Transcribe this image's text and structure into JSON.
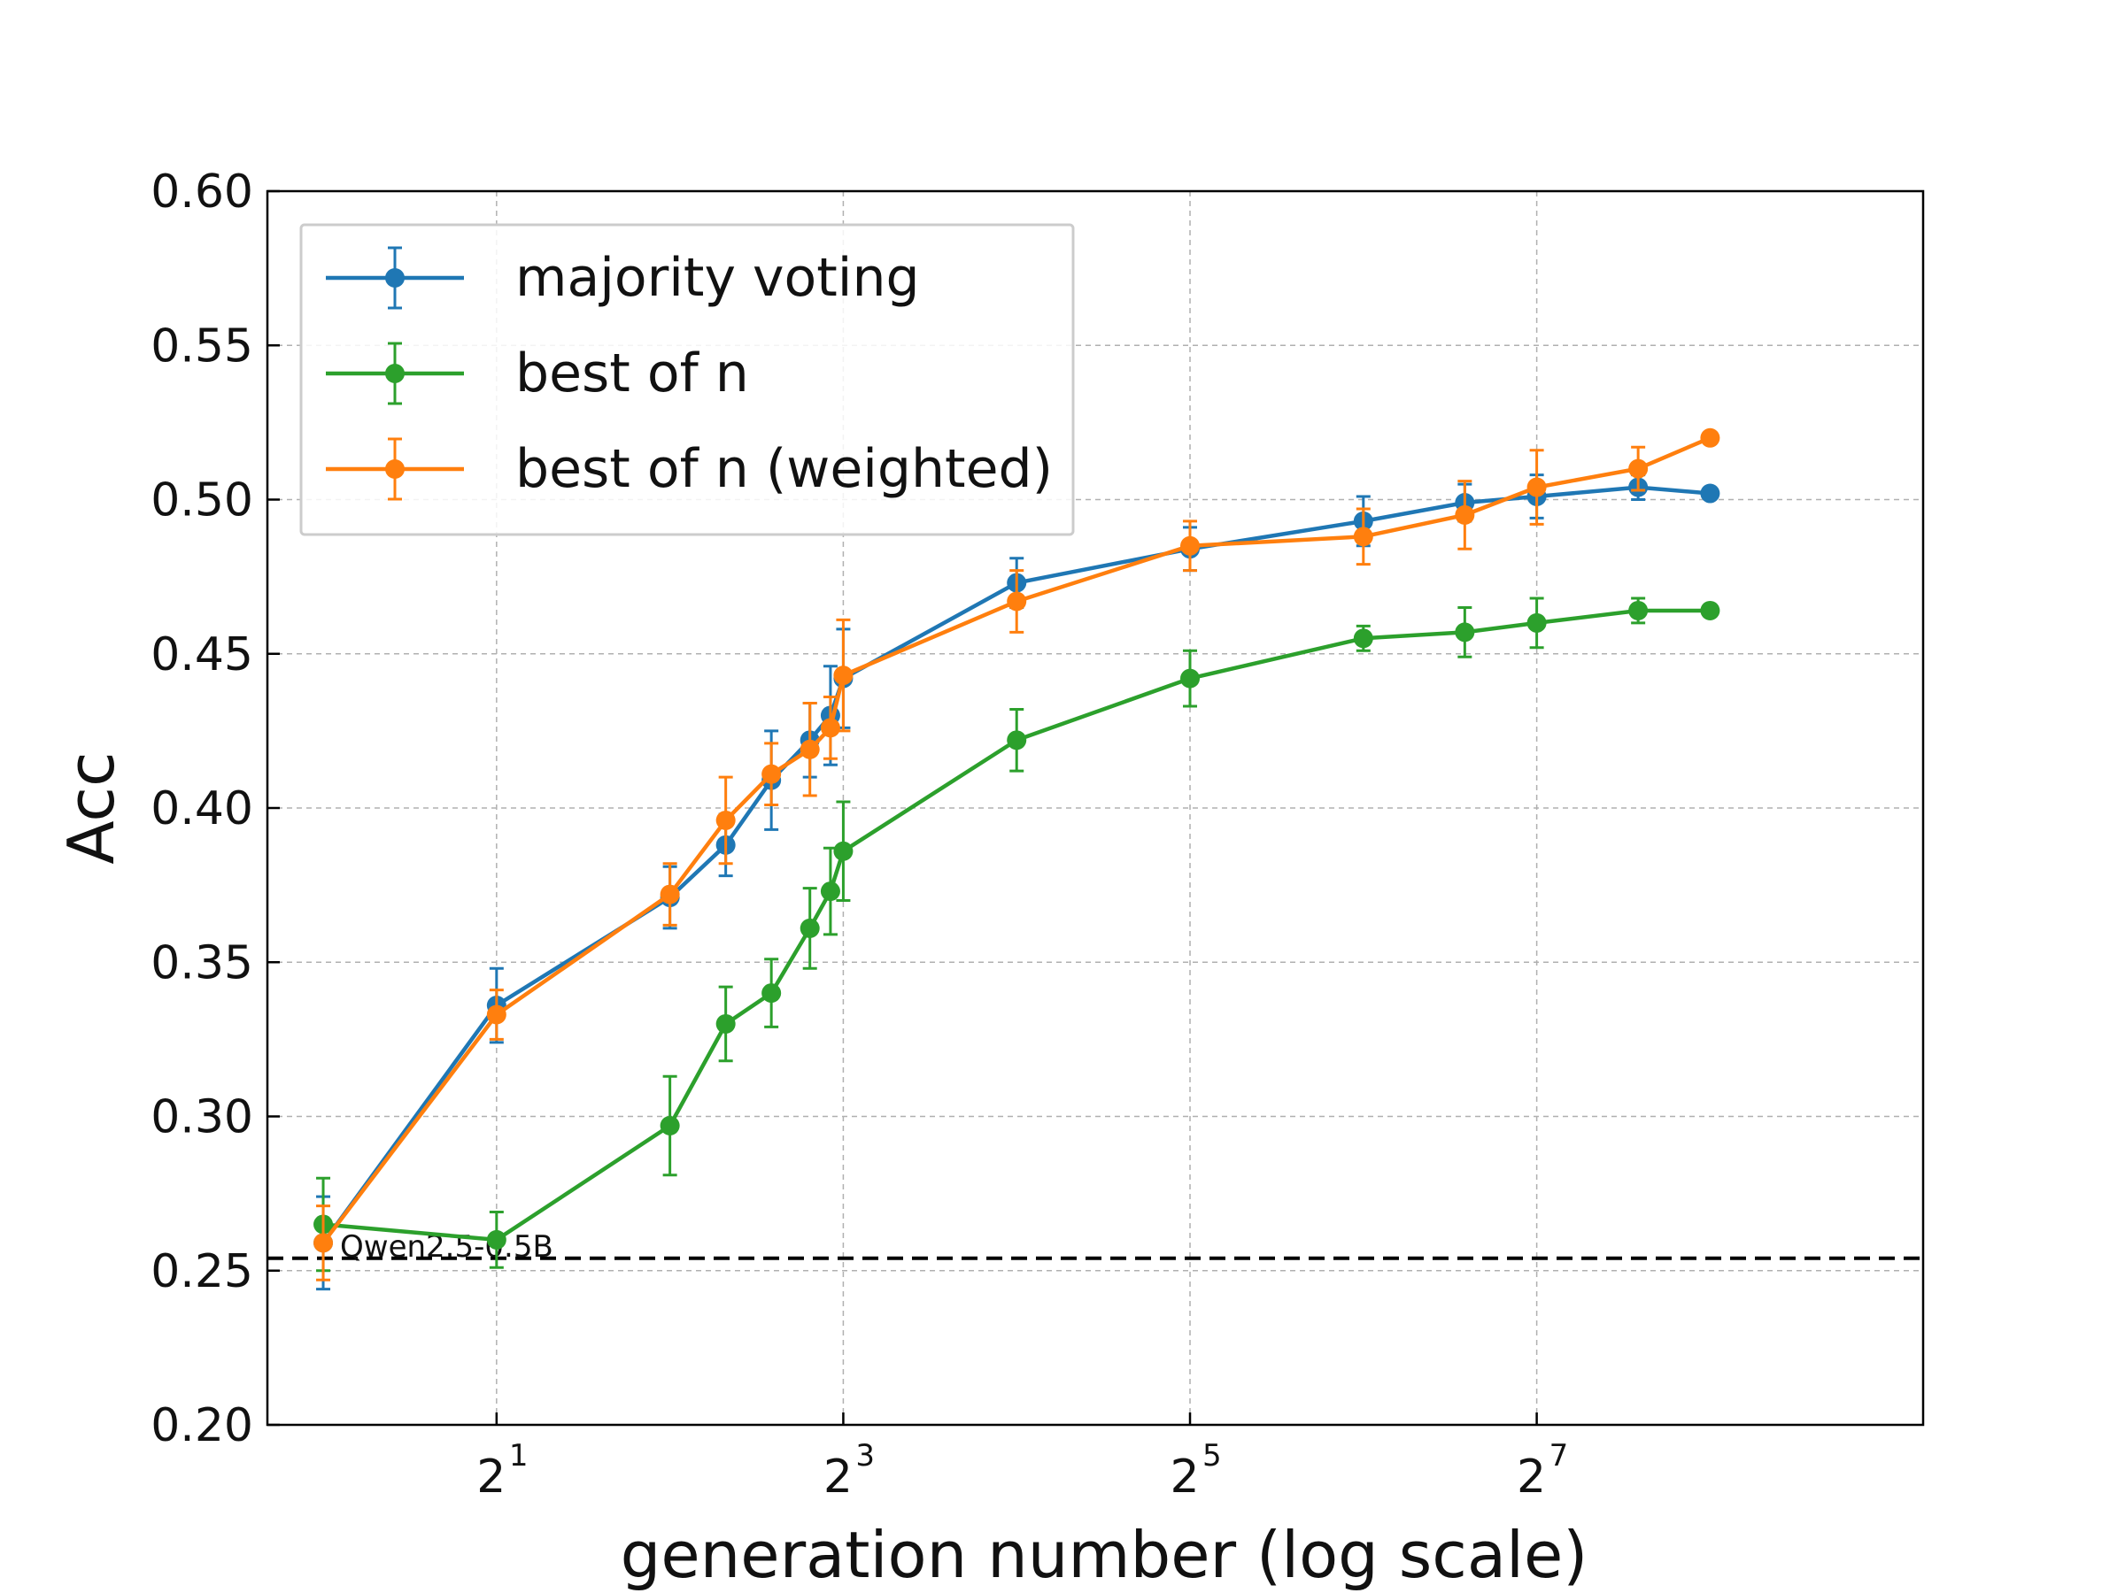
{
  "chart_data": {
    "type": "line",
    "xlabel": "generation number (log scale)",
    "ylabel": "Acc",
    "x_scale": "log2",
    "xlim": [
      0.8,
      600
    ],
    "ylim": [
      0.2,
      0.6
    ],
    "grid": true,
    "legend_position": "top-left",
    "x_ticks": [
      {
        "value": 2,
        "base": "2",
        "exp": "1"
      },
      {
        "value": 8,
        "base": "2",
        "exp": "3"
      },
      {
        "value": 32,
        "base": "2",
        "exp": "5"
      },
      {
        "value": 128,
        "base": "2",
        "exp": "7"
      }
    ],
    "y_ticks": [
      "0.20",
      "0.25",
      "0.30",
      "0.35",
      "0.40",
      "0.45",
      "0.50",
      "0.55",
      "0.60"
    ],
    "reference_line": {
      "y": 0.254,
      "label": "Qwen2.5-0.5B",
      "style": "dashed",
      "color": "#000000"
    },
    "series": [
      {
        "name": "majority voting",
        "color": "#1f77b4",
        "points": [
          {
            "x": 1,
            "y": 0.259,
            "err": 0.015
          },
          {
            "x": 2,
            "y": 0.336,
            "err": 0.012
          },
          {
            "x": 4,
            "y": 0.371,
            "err": 0.01
          },
          {
            "x": 5,
            "y": 0.388,
            "err": 0.01
          },
          {
            "x": 6,
            "y": 0.409,
            "err": 0.016
          },
          {
            "x": 7,
            "y": 0.422,
            "err": 0.012
          },
          {
            "x": 7.6,
            "y": 0.43,
            "err": 0.016
          },
          {
            "x": 8,
            "y": 0.442,
            "err": 0.016
          },
          {
            "x": 16,
            "y": 0.473,
            "err": 0.008
          },
          {
            "x": 32,
            "y": 0.484,
            "err": 0.007
          },
          {
            "x": 64,
            "y": 0.493,
            "err": 0.008
          },
          {
            "x": 96,
            "y": 0.499,
            "err": 0.006
          },
          {
            "x": 128,
            "y": 0.501,
            "err": 0.007
          },
          {
            "x": 192,
            "y": 0.504,
            "err": 0.004
          },
          {
            "x": 256,
            "y": 0.502,
            "err": 0
          }
        ]
      },
      {
        "name": "best of n",
        "color": "#2ca02c",
        "points": [
          {
            "x": 1,
            "y": 0.265,
            "err": 0.015
          },
          {
            "x": 2,
            "y": 0.26,
            "err": 0.009
          },
          {
            "x": 4,
            "y": 0.297,
            "err": 0.016
          },
          {
            "x": 5,
            "y": 0.33,
            "err": 0.012
          },
          {
            "x": 6,
            "y": 0.34,
            "err": 0.011
          },
          {
            "x": 7,
            "y": 0.361,
            "err": 0.013
          },
          {
            "x": 7.6,
            "y": 0.373,
            "err": 0.014
          },
          {
            "x": 8,
            "y": 0.386,
            "err": 0.016
          },
          {
            "x": 16,
            "y": 0.422,
            "err": 0.01
          },
          {
            "x": 32,
            "y": 0.442,
            "err": 0.009
          },
          {
            "x": 64,
            "y": 0.455,
            "err": 0.004
          },
          {
            "x": 96,
            "y": 0.457,
            "err": 0.008
          },
          {
            "x": 128,
            "y": 0.46,
            "err": 0.008
          },
          {
            "x": 192,
            "y": 0.464,
            "err": 0.004
          },
          {
            "x": 256,
            "y": 0.464,
            "err": 0
          }
        ]
      },
      {
        "name": "best of n (weighted)",
        "color": "#ff7f0e",
        "points": [
          {
            "x": 1,
            "y": 0.259,
            "err": 0.012
          },
          {
            "x": 2,
            "y": 0.333,
            "err": 0.008
          },
          {
            "x": 4,
            "y": 0.372,
            "err": 0.01
          },
          {
            "x": 5,
            "y": 0.396,
            "err": 0.014
          },
          {
            "x": 6,
            "y": 0.411,
            "err": 0.01
          },
          {
            "x": 7,
            "y": 0.419,
            "err": 0.015
          },
          {
            "x": 7.6,
            "y": 0.426,
            "err": 0.01
          },
          {
            "x": 8,
            "y": 0.443,
            "err": 0.018
          },
          {
            "x": 16,
            "y": 0.467,
            "err": 0.01
          },
          {
            "x": 32,
            "y": 0.485,
            "err": 0.008
          },
          {
            "x": 64,
            "y": 0.488,
            "err": 0.009
          },
          {
            "x": 96,
            "y": 0.495,
            "err": 0.011
          },
          {
            "x": 128,
            "y": 0.504,
            "err": 0.012
          },
          {
            "x": 192,
            "y": 0.51,
            "err": 0.007
          },
          {
            "x": 256,
            "y": 0.52,
            "err": 0
          }
        ]
      }
    ]
  }
}
